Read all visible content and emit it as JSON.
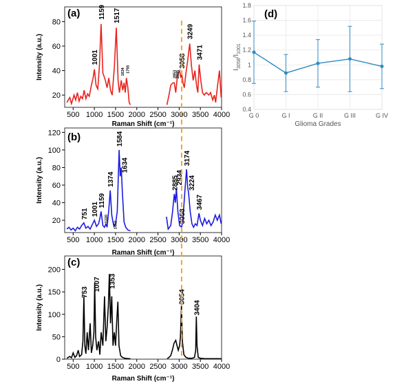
{
  "figure": {
    "colors": {
      "a": "#e8211b",
      "b": "#1a1ae0",
      "c": "#000000",
      "d": "#2e8bc0",
      "dash": "#f5a623"
    },
    "dashed_line_x": 3058
  },
  "chart_data": [
    {
      "id": "a",
      "type": "line",
      "panel_label": "(a)",
      "xlabel": "Raman Shift (cm⁻¹)",
      "ylabel": "Intensity (a.u.)",
      "xlim": [
        300,
        4000
      ],
      "ylim": [
        10,
        92
      ],
      "xticks": [
        500,
        1000,
        1500,
        2000,
        2500,
        3000,
        3500,
        4000
      ],
      "yticks": [
        20,
        40,
        60,
        80
      ],
      "segments": [
        [
          [
            350,
            14
          ],
          [
            420,
            18
          ],
          [
            460,
            13
          ],
          [
            520,
            20
          ],
          [
            560,
            16
          ],
          [
            600,
            22
          ],
          [
            640,
            15
          ],
          [
            680,
            19
          ],
          [
            720,
            17
          ],
          [
            760,
            24
          ],
          [
            800,
            17
          ],
          [
            840,
            21
          ],
          [
            880,
            19
          ],
          [
            930,
            28
          ],
          [
            970,
            34
          ],
          [
            1001,
            41
          ],
          [
            1040,
            28
          ],
          [
            1080,
            25
          ],
          [
            1120,
            44
          ],
          [
            1159,
            78
          ],
          [
            1200,
            38
          ],
          [
            1260,
            32
          ],
          [
            1300,
            26
          ],
          [
            1340,
            34
          ],
          [
            1380,
            24
          ],
          [
            1420,
            20
          ],
          [
            1470,
            42
          ],
          [
            1517,
            75
          ],
          [
            1560,
            32
          ],
          [
            1590,
            22
          ],
          [
            1634,
            32
          ],
          [
            1670,
            24
          ],
          [
            1700,
            30
          ],
          [
            1730,
            22
          ],
          [
            1755,
            34
          ],
          [
            1790,
            26
          ],
          [
            1820,
            14
          ],
          [
            1850,
            12
          ]
        ],
        [
          [
            2710,
            12
          ],
          [
            2760,
            20
          ],
          [
            2800,
            28
          ],
          [
            2853,
            30
          ],
          [
            2885,
            30
          ],
          [
            2920,
            22
          ],
          [
            2960,
            36
          ],
          [
            3010,
            40
          ],
          [
            3040,
            34
          ],
          [
            3058,
            38
          ],
          [
            3090,
            30
          ],
          [
            3120,
            26
          ],
          [
            3160,
            38
          ],
          [
            3200,
            48
          ],
          [
            3249,
            62
          ],
          [
            3290,
            44
          ],
          [
            3330,
            32
          ],
          [
            3370,
            40
          ],
          [
            3410,
            28
          ],
          [
            3440,
            22
          ],
          [
            3471,
            45
          ],
          [
            3510,
            32
          ],
          [
            3550,
            22
          ],
          [
            3590,
            20
          ],
          [
            3640,
            22
          ],
          [
            3700,
            20
          ],
          [
            3740,
            22
          ],
          [
            3790,
            16
          ],
          [
            3830,
            20
          ],
          [
            3860,
            14
          ],
          [
            3900,
            26
          ],
          [
            3950,
            40
          ],
          [
            3990,
            18
          ]
        ]
      ],
      "peak_labels": [
        {
          "text": "1001",
          "x": 1001,
          "y": 44,
          "size": "big"
        },
        {
          "text": "1159",
          "x": 1159,
          "y": 81,
          "size": "big"
        },
        {
          "text": "1517",
          "x": 1517,
          "y": 78,
          "size": "big"
        },
        {
          "text": "1634",
          "x": 1634,
          "y": 35,
          "size": "small"
        },
        {
          "text": "1755",
          "x": 1755,
          "y": 37,
          "size": "small"
        },
        {
          "text": "2853",
          "x": 2853,
          "y": 33,
          "size": "small"
        },
        {
          "text": "2885",
          "x": 2930,
          "y": 33,
          "size": "small"
        },
        {
          "text": "3058",
          "x": 3058,
          "y": 41,
          "size": "big"
        },
        {
          "text": "3249",
          "x": 3249,
          "y": 65,
          "size": "big"
        },
        {
          "text": "3471",
          "x": 3471,
          "y": 48,
          "size": "big"
        }
      ]
    },
    {
      "id": "b",
      "type": "line",
      "panel_label": "(b)",
      "xlabel": "Raman Shift (cm⁻¹)",
      "ylabel": "Intensity (a.u.)",
      "xlim": [
        300,
        4000
      ],
      "ylim": [
        6,
        125
      ],
      "xticks": [
        500,
        1000,
        1500,
        2000,
        2500,
        3000,
        3500,
        4000
      ],
      "yticks": [
        20,
        40,
        60,
        80,
        100,
        120
      ],
      "segments": [
        [
          [
            350,
            10
          ],
          [
            400,
            12
          ],
          [
            450,
            9
          ],
          [
            500,
            11
          ],
          [
            550,
            8
          ],
          [
            600,
            12
          ],
          [
            650,
            10
          ],
          [
            700,
            14
          ],
          [
            751,
            17
          ],
          [
            800,
            11
          ],
          [
            850,
            13
          ],
          [
            900,
            10
          ],
          [
            960,
            16
          ],
          [
            1001,
            20
          ],
          [
            1050,
            13
          ],
          [
            1100,
            16
          ],
          [
            1130,
            22
          ],
          [
            1159,
            30
          ],
          [
            1200,
            14
          ],
          [
            1240,
            12
          ],
          [
            1272,
            16
          ],
          [
            1300,
            12
          ],
          [
            1340,
            32
          ],
          [
            1374,
            54
          ],
          [
            1410,
            26
          ],
          [
            1440,
            18
          ],
          [
            1462,
            13
          ],
          [
            1500,
            16
          ],
          [
            1540,
            30
          ],
          [
            1584,
            100
          ],
          [
            1610,
            70
          ],
          [
            1634,
            80
          ],
          [
            1660,
            52
          ],
          [
            1700,
            18
          ],
          [
            1740,
            12
          ],
          [
            1790,
            9
          ],
          [
            1850,
            8
          ]
        ],
        [
          [
            2700,
            24
          ],
          [
            2740,
            10
          ],
          [
            2800,
            14
          ],
          [
            2840,
            28
          ],
          [
            2885,
            50
          ],
          [
            2910,
            40
          ],
          [
            2934,
            56
          ],
          [
            2970,
            30
          ],
          [
            3010,
            14
          ],
          [
            3058,
            12
          ],
          [
            3090,
            22
          ],
          [
            3130,
            50
          ],
          [
            3174,
            78
          ],
          [
            3200,
            58
          ],
          [
            3224,
            50
          ],
          [
            3260,
            30
          ],
          [
            3300,
            16
          ],
          [
            3340,
            12
          ],
          [
            3380,
            16
          ],
          [
            3420,
            14
          ],
          [
            3467,
            28
          ],
          [
            3500,
            20
          ],
          [
            3550,
            14
          ],
          [
            3600,
            22
          ],
          [
            3650,
            16
          ],
          [
            3700,
            20
          ],
          [
            3750,
            14
          ],
          [
            3800,
            18
          ],
          [
            3850,
            26
          ],
          [
            3900,
            20
          ],
          [
            3950,
            26
          ],
          [
            3990,
            16
          ]
        ]
      ],
      "peak_labels": [
        {
          "text": "751",
          "x": 751,
          "y": 20,
          "size": "big"
        },
        {
          "text": "1001",
          "x": 1001,
          "y": 23,
          "size": "big"
        },
        {
          "text": "1159",
          "x": 1159,
          "y": 33,
          "size": "big"
        },
        {
          "text": "1220",
          "x": 1240,
          "y": 16,
          "size": "small"
        },
        {
          "text": "1374",
          "x": 1374,
          "y": 57,
          "size": "big"
        },
        {
          "text": "1452",
          "x": 1462,
          "y": 9,
          "size": "small"
        },
        {
          "text": "1584",
          "x": 1584,
          "y": 103,
          "size": "big"
        },
        {
          "text": "1634",
          "x": 1700,
          "y": 73,
          "size": "big"
        },
        {
          "text": "2885",
          "x": 2885,
          "y": 53,
          "size": "big"
        },
        {
          "text": "2934",
          "x": 2990,
          "y": 59,
          "size": "big"
        },
        {
          "text": "3058",
          "x": 3058,
          "y": 15,
          "size": "big"
        },
        {
          "text": "3174",
          "x": 3174,
          "y": 81,
          "size": "big"
        },
        {
          "text": "3224",
          "x": 3290,
          "y": 53,
          "size": "big"
        },
        {
          "text": "3467",
          "x": 3467,
          "y": 31,
          "size": "big"
        }
      ]
    },
    {
      "id": "c",
      "type": "line",
      "panel_label": "(c)",
      "xlabel": "Raman Shift (cm⁻¹)",
      "ylabel": "Intensity (a.u.)",
      "xlim": [
        300,
        4000
      ],
      "ylim": [
        0,
        230
      ],
      "xticks": [
        500,
        1000,
        1500,
        2000,
        2500,
        3000,
        3500,
        4000
      ],
      "yticks": [
        0,
        50,
        100,
        150,
        200
      ],
      "segments": [
        [
          [
            350,
            2
          ],
          [
            420,
            6
          ],
          [
            460,
            3
          ],
          [
            500,
            14
          ],
          [
            540,
            4
          ],
          [
            580,
            8
          ],
          [
            620,
            20
          ],
          [
            650,
            6
          ],
          [
            700,
            10
          ],
          [
            730,
            40
          ],
          [
            753,
            140
          ],
          [
            775,
            30
          ],
          [
            800,
            12
          ],
          [
            830,
            60
          ],
          [
            860,
            20
          ],
          [
            900,
            80
          ],
          [
            930,
            14
          ],
          [
            960,
            30
          ],
          [
            990,
            60
          ],
          [
            1007,
            170
          ],
          [
            1030,
            50
          ],
          [
            1060,
            20
          ],
          [
            1100,
            40
          ],
          [
            1130,
            10
          ],
          [
            1160,
            60
          ],
          [
            1200,
            30
          ],
          [
            1240,
            140
          ],
          [
            1270,
            40
          ],
          [
            1300,
            70
          ],
          [
            1330,
            120
          ],
          [
            1353,
            190
          ],
          [
            1380,
            80
          ],
          [
            1410,
            140
          ],
          [
            1440,
            30
          ],
          [
            1470,
            60
          ],
          [
            1500,
            30
          ],
          [
            1530,
            90
          ],
          [
            1555,
            128
          ],
          [
            1580,
            30
          ],
          [
            1620,
            8
          ],
          [
            1660,
            4
          ],
          [
            1720,
            2
          ],
          [
            1800,
            1
          ],
          [
            1850,
            1
          ]
        ],
        [
          [
            2720,
            1
          ],
          [
            2760,
            4
          ],
          [
            2800,
            8
          ],
          [
            2840,
            20
          ],
          [
            2880,
            36
          ],
          [
            2920,
            42
          ],
          [
            2950,
            30
          ],
          [
            2980,
            20
          ],
          [
            3010,
            30
          ],
          [
            3030,
            50
          ],
          [
            3054,
            120
          ],
          [
            3075,
            40
          ],
          [
            3110,
            10
          ],
          [
            3160,
            4
          ],
          [
            3220,
            2
          ],
          [
            3300,
            2
          ],
          [
            3360,
            4
          ],
          [
            3390,
            20
          ],
          [
            3404,
            95
          ],
          [
            3420,
            30
          ],
          [
            3450,
            4
          ],
          [
            3500,
            2
          ],
          [
            3600,
            1
          ],
          [
            3700,
            1
          ],
          [
            3800,
            1
          ],
          [
            3900,
            1
          ],
          [
            3990,
            1
          ]
        ]
      ],
      "peak_labels": [
        {
          "text": "753",
          "x": 753,
          "y": 135,
          "size": "big"
        },
        {
          "text": "1007",
          "x": 1050,
          "y": 148,
          "size": "big"
        },
        {
          "text": "1353",
          "x": 1410,
          "y": 155,
          "size": "big"
        },
        {
          "text": "3054",
          "x": 3054,
          "y": 120,
          "size": "big"
        },
        {
          "text": "3404",
          "x": 3404,
          "y": 96,
          "size": "big"
        }
      ]
    },
    {
      "id": "d",
      "type": "line",
      "panel_label": "(d)",
      "xlabel": "Glioma Grades",
      "ylabel": "I",
      "ylabel_sub": "3058",
      "ylabel_mid": "/I",
      "ylabel_sub2": "1001",
      "categories": [
        "G 0",
        "G I",
        "G II",
        "G III",
        "G IV"
      ],
      "values": [
        1.17,
        0.89,
        1.02,
        1.08,
        0.98
      ],
      "errors": [
        0.42,
        0.25,
        0.32,
        0.44,
        0.3
      ],
      "ylim": [
        0.4,
        1.8
      ],
      "yticks": [
        "0.4",
        "0.6",
        "0.8",
        "1",
        "1.2",
        "1.4",
        "1.6",
        "1.8"
      ],
      "grid": true
    }
  ]
}
